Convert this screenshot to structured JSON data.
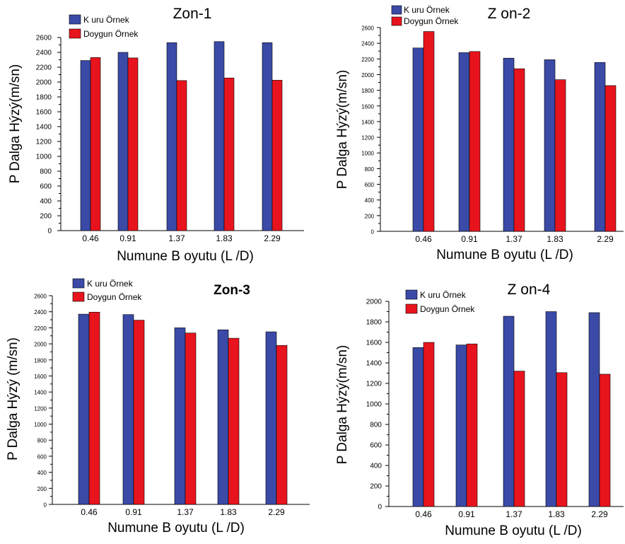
{
  "colors": {
    "kuru": "#3a4aa6",
    "doygun": "#e8141d"
  },
  "chart_data": [
    {
      "type": "bar",
      "title": "Zon-1",
      "xlabel": "Numune B oyutu (L /D)",
      "ylabel": "P Dalga Hýzý(m/sn)",
      "categories": [
        "0.46",
        "0.91",
        "1.37",
        "1.83",
        "2.29"
      ],
      "ylim": [
        0,
        2600
      ],
      "yticks": [
        "0",
        "200",
        "400",
        "600",
        "800",
        "1000",
        "1200",
        "1400",
        "1600",
        "1800",
        "2000",
        "2200",
        "2400",
        "2600"
      ],
      "series": [
        {
          "name": "K uru Örnek",
          "values": [
            2290,
            2400,
            2530,
            2545,
            2530
          ]
        },
        {
          "name": "Doygun Örnek",
          "values": [
            2330,
            2325,
            2020,
            2055,
            2025
          ]
        }
      ],
      "legend": "top-left"
    },
    {
      "type": "bar",
      "title": "Z on-2",
      "xlabel": "Numune B oyutu (L /D)",
      "ylabel": "P Dalga Hýzý(m/sn)",
      "categories": [
        "0.46",
        "0.91",
        "1.37",
        "1.83",
        "2.29"
      ],
      "ylim": [
        0,
        2600
      ],
      "yticks": [
        "0",
        "200",
        "400",
        "600",
        "800",
        "1000",
        "1200",
        "1400",
        "1600",
        "1800",
        "2000",
        "2200",
        "2400",
        "2600"
      ],
      "series": [
        {
          "name": "K uru Örnek",
          "values": [
            2340,
            2280,
            2210,
            2190,
            2155
          ]
        },
        {
          "name": "Doygun Örnek",
          "values": [
            2550,
            2295,
            2075,
            1935,
            1860
          ]
        }
      ],
      "legend": "top-left"
    },
    {
      "type": "bar",
      "title": "Zon-3",
      "xlabel": "Numune B oyutu (L /D)",
      "ylabel": "P Dalga Hýzý (m/sn)",
      "categories": [
        "0.46",
        "0.91",
        "1.37",
        "1.83",
        "2.29"
      ],
      "ylim": [
        0,
        2600
      ],
      "yticks": [
        "0",
        "200",
        "400",
        "600",
        "800",
        "1000",
        "1200",
        "1400",
        "1600",
        "1800",
        "2000",
        "2200",
        "2400",
        "2600"
      ],
      "series": [
        {
          "name": "K uru Örnek",
          "values": [
            2370,
            2365,
            2200,
            2175,
            2150
          ]
        },
        {
          "name": "Doygun Örnek",
          "values": [
            2395,
            2295,
            2135,
            2070,
            1980
          ]
        }
      ],
      "legend": "top-left"
    },
    {
      "type": "bar",
      "title": "Z on-4",
      "xlabel": "Numune B oyutu (L /D)",
      "ylabel": "P Dalga Hýzý(m/sn)",
      "categories": [
        "0.46",
        "0.91",
        "1.37",
        "1.83",
        "2.29"
      ],
      "ylim": [
        0,
        2000
      ],
      "yticks": [
        "0",
        "200",
        "400",
        "600",
        "800",
        "1000",
        "1200",
        "1400",
        "1600",
        "1800",
        "2000"
      ],
      "series": [
        {
          "name": "K uru Örnek",
          "values": [
            1550,
            1575,
            1855,
            1900,
            1890
          ]
        },
        {
          "name": "Doygun Örnek",
          "values": [
            1600,
            1585,
            1320,
            1305,
            1290
          ]
        }
      ],
      "legend": "top-left"
    }
  ]
}
